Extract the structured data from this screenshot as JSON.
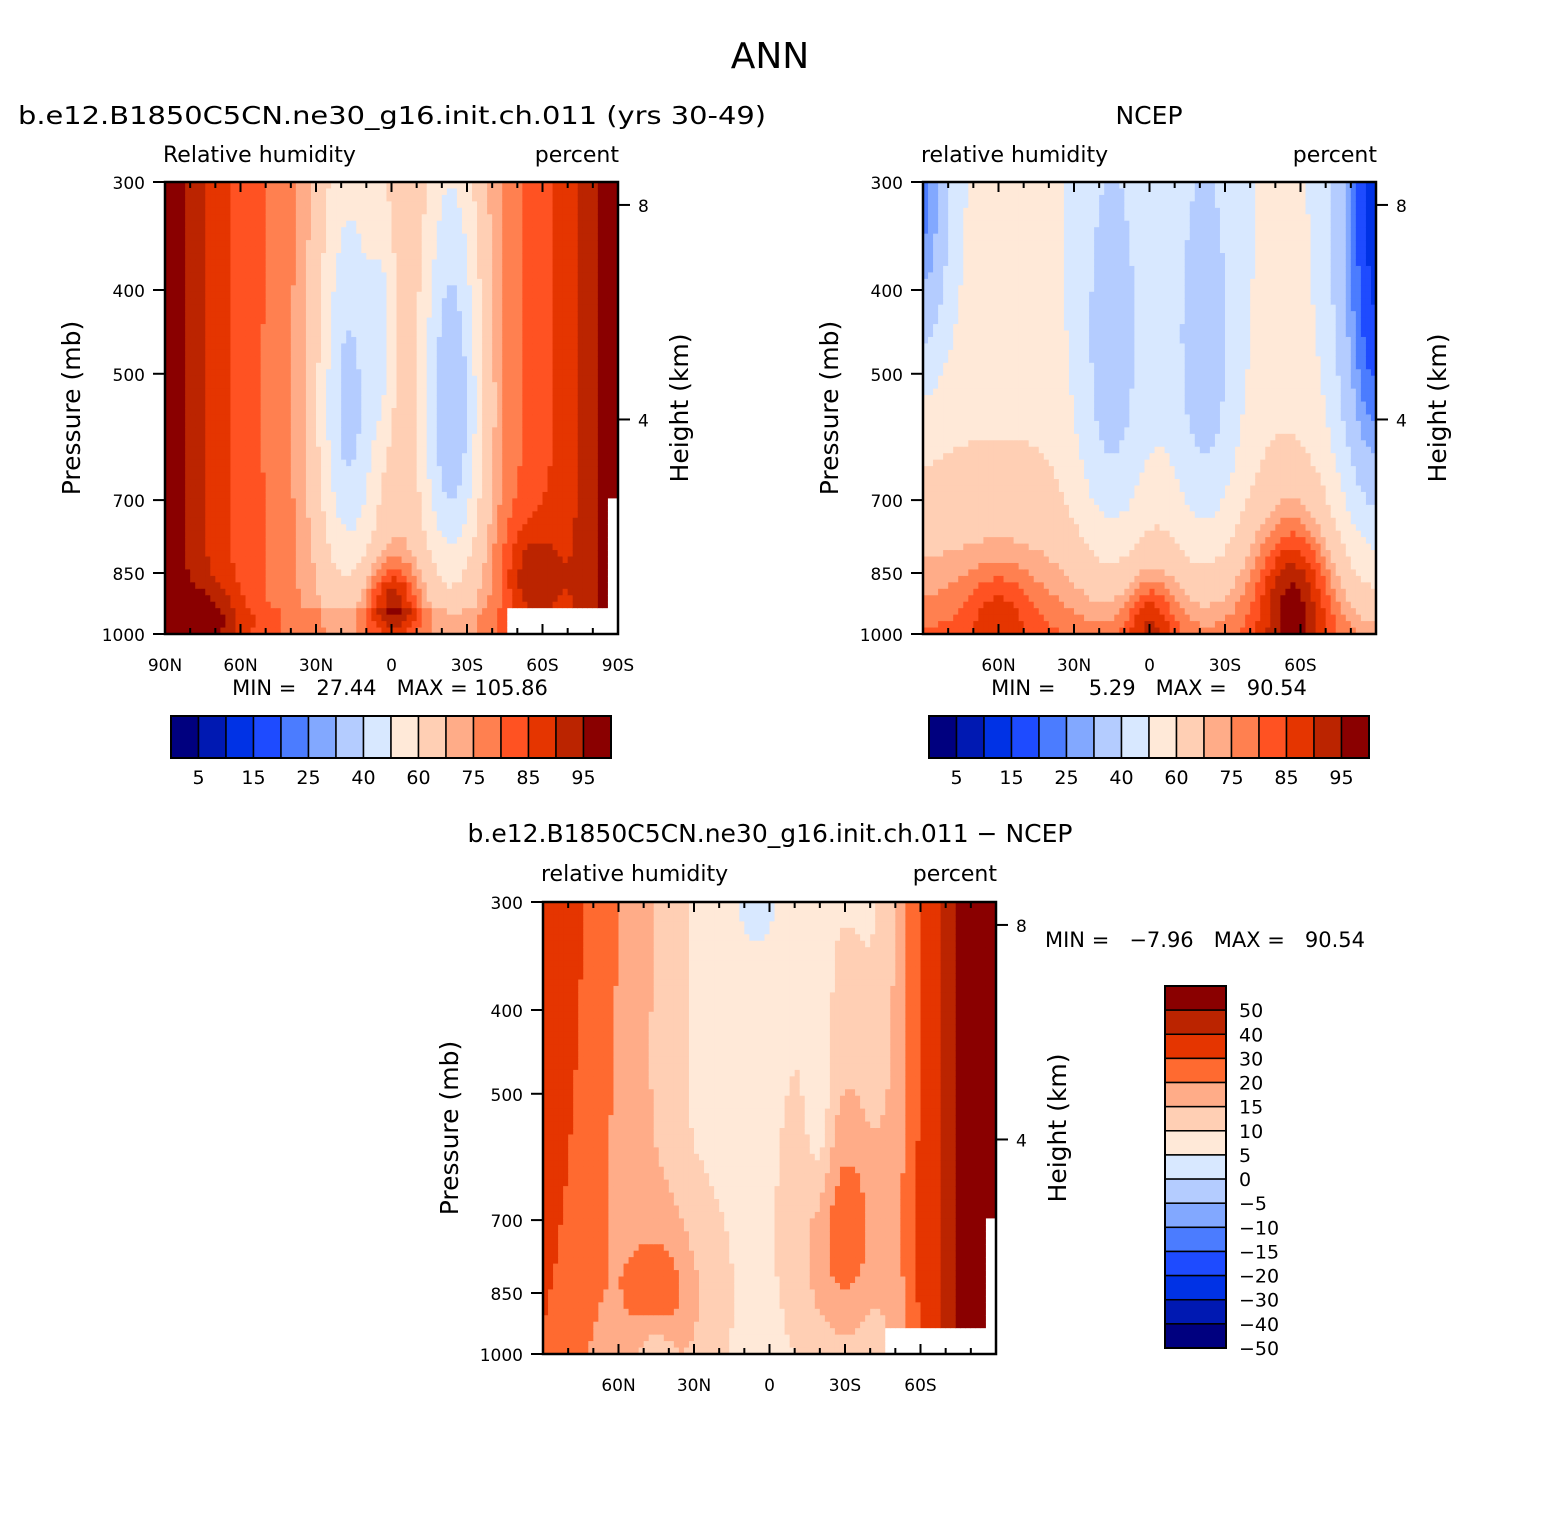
{
  "figure_title": "ANN",
  "panels": {
    "model": {
      "title": "b.e12.B1850C5CN.ne30_g16.init.ch.011 (yrs 30-49)",
      "var_left": "Relative humidity",
      "var_right": "percent",
      "ylabel": "Pressure (mb)",
      "ylabel_right": "Height (km)",
      "stats": "MIN =   27.44   MAX = 105.86"
    },
    "obs": {
      "title": "NCEP",
      "var_left": "relative humidity",
      "var_right": "percent",
      "ylabel": "Pressure (mb)",
      "ylabel_right": "Height (km)",
      "stats": "MIN =     5.29   MAX =   90.54"
    },
    "diff": {
      "title": "b.e12.B1850C5CN.ne30_g16.init.ch.011 − NCEP",
      "var_left": "relative humidity",
      "var_right": "percent",
      "ylabel": "Pressure (mb)",
      "ylabel_right": "Height (km)",
      "stats": "MIN =   −7.96   MAX =   90.54"
    }
  },
  "chart_data": [
    {
      "type": "heatmap",
      "title": "b.e12.B1850C5CN.ne30_g16.init.ch.011 (yrs 30-49)",
      "ylabel": "Pressure (mb)",
      "y_ticks": [
        300,
        400,
        500,
        700,
        850,
        1000
      ],
      "y_right_label": "Height (km)",
      "y_right_ticks": [
        8,
        4
      ],
      "x_ticks": [
        "90N",
        "60N",
        "30N",
        "0",
        "30S",
        "60S",
        "90S"
      ],
      "x_values": [
        90,
        60,
        30,
        0,
        -30,
        -60,
        -90
      ],
      "min": 27.44,
      "max": 105.86,
      "field": "model"
    },
    {
      "type": "heatmap",
      "title": "NCEP",
      "ylabel": "Pressure (mb)",
      "y_ticks": [
        300,
        400,
        500,
        700,
        850,
        1000
      ],
      "y_right_label": "Height (km)",
      "y_right_ticks": [
        8,
        4
      ],
      "x_ticks": [
        "60N",
        "30N",
        "0",
        "30S",
        "60S"
      ],
      "x_values": [
        60,
        30,
        0,
        -30,
        -60
      ],
      "min": 5.29,
      "max": 90.54,
      "field": "obs"
    },
    {
      "type": "heatmap",
      "title": "b.e12.B1850C5CN.ne30_g16.init.ch.011 − NCEP",
      "ylabel": "Pressure (mb)",
      "y_ticks": [
        300,
        400,
        500,
        700,
        850,
        1000
      ],
      "y_right_label": "Height (km)",
      "y_right_ticks": [
        8,
        4
      ],
      "x_ticks": [
        "60N",
        "30N",
        "0",
        "30S",
        "60S"
      ],
      "x_values": [
        60,
        30,
        0,
        -30,
        -60
      ],
      "min": -7.96,
      "max": 90.54,
      "field": "diff"
    }
  ],
  "colorbars": {
    "main": {
      "levels": [
        5,
        10,
        15,
        20,
        25,
        30,
        40,
        50,
        60,
        70,
        75,
        80,
        85,
        90,
        95
      ],
      "labels": [
        "5",
        "15",
        "25",
        "40",
        "60",
        "75",
        "85",
        "95"
      ],
      "colors": [
        "#00007f",
        "#0019b2",
        "#0032e5",
        "#1e4bff",
        "#4b7cff",
        "#82a8ff",
        "#b4ccff",
        "#d8e8ff",
        "#ffe9d8",
        "#ffcfb4",
        "#ffac88",
        "#ff8050",
        "#ff5222",
        "#e53500",
        "#bb2400",
        "#8a0000"
      ]
    },
    "diff": {
      "labels": [
        "50",
        "40",
        "30",
        "20",
        "15",
        "10",
        "5",
        "0",
        "−5",
        "−10",
        "−15",
        "−20",
        "−30",
        "−40",
        "−50"
      ],
      "colors": [
        "#8a0000",
        "#bb2400",
        "#e53500",
        "#ff6a30",
        "#ffac88",
        "#ffcfb4",
        "#ffe9d8",
        "#d8e8ff",
        "#b4ccff",
        "#82a8ff",
        "#4b7cff",
        "#1e4bff",
        "#0032e5",
        "#0019b2",
        "#00007f"
      ]
    }
  }
}
